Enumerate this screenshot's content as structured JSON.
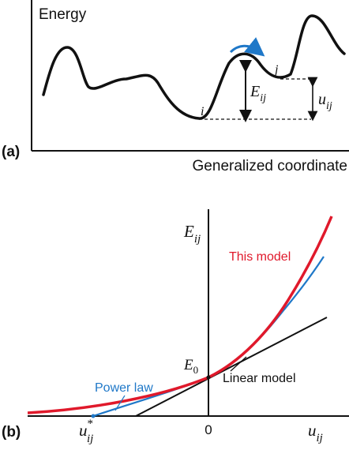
{
  "panel_a": {
    "label": "(a)",
    "y_axis_title": "Energy",
    "x_axis_title": "Generalized coordinate",
    "state_i": "i",
    "state_j": "j",
    "barrier": {
      "main": "E",
      "sub": "ij"
    },
    "energy_difference": {
      "main": "u",
      "sub": "ij"
    }
  },
  "panel_b": {
    "label": "(b)",
    "y_axis_title": {
      "main": "E",
      "sub": "ij"
    },
    "x_axis_title": {
      "main": "u",
      "sub": "ij"
    },
    "origin_label": "0",
    "intercept_label": {
      "main": "E",
      "sub": "0"
    },
    "critical_point_label": {
      "main": "u",
      "sup": "*",
      "sub": "ij"
    },
    "series": [
      {
        "name": "This model",
        "color": "#e0192b"
      },
      {
        "name": "Power law",
        "color": "#1f78c8"
      },
      {
        "name": "Linear model",
        "color": "#111111"
      }
    ]
  }
}
